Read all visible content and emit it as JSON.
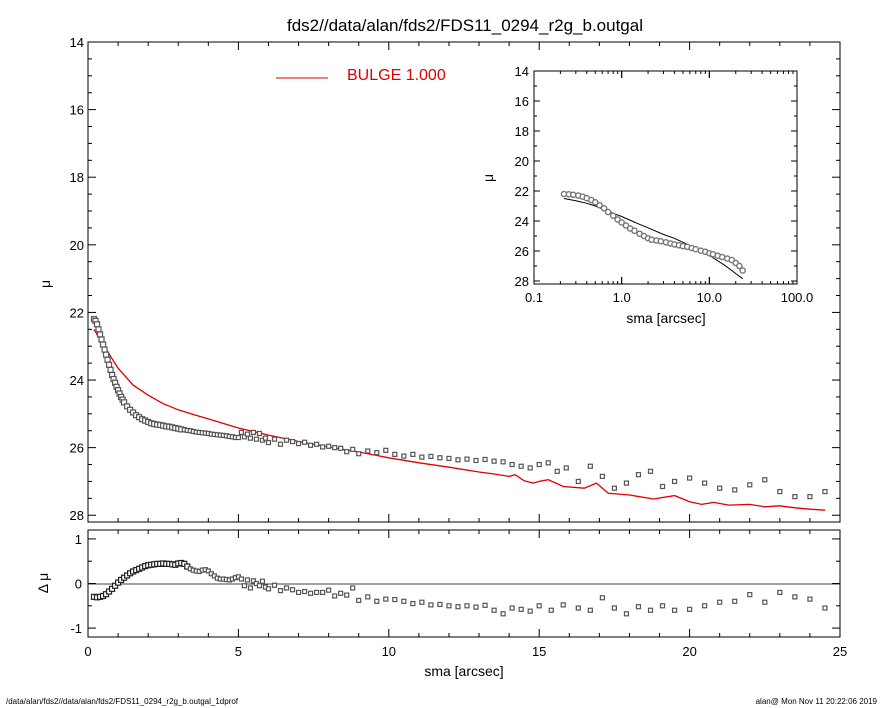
{
  "colors": {
    "model": "#e00000",
    "data": "#555555",
    "axes": "#000000",
    "background": "#ffffff"
  },
  "footer": {
    "left": "/data/alan/fds2//data/alan/fds2/FDS11_0294_r2g_b.outgal_1dprof",
    "right": "alan@  Mon Nov 11 20:22:06 2019"
  },
  "chart_data": [
    {
      "id": "main",
      "type": "scatter",
      "title": "fds2//data/alan/fds2/FDS11_0294_r2g_b.outgal",
      "xlabel": "",
      "ylabel": "μ",
      "xlim": [
        0,
        25
      ],
      "ylim": [
        28.2,
        14
      ],
      "yticks": [
        "14",
        "16",
        "18",
        "20",
        "22",
        "24",
        "26",
        "28"
      ],
      "ytick_values": [
        14,
        16,
        18,
        20,
        22,
        24,
        26,
        28
      ],
      "legend": {
        "label": "BULGE  1.000",
        "position": "top-center"
      },
      "data_points": {
        "x": [
          0.2,
          0.25,
          0.3,
          0.35,
          0.4,
          0.45,
          0.5,
          0.55,
          0.6,
          0.65,
          0.7,
          0.75,
          0.8,
          0.85,
          0.9,
          0.95,
          1.0,
          1.05,
          1.1,
          1.15,
          1.2,
          1.3,
          1.4,
          1.5,
          1.6,
          1.7,
          1.8,
          1.9,
          2.0,
          2.1,
          2.2,
          2.3,
          2.4,
          2.5,
          2.6,
          2.7,
          2.8,
          2.9,
          3.0,
          3.1,
          3.2,
          3.3,
          3.4,
          3.5,
          3.6,
          3.7,
          3.8,
          3.9,
          4.0,
          4.1,
          4.2,
          4.3,
          4.4,
          4.5,
          4.6,
          4.7,
          4.8,
          4.9,
          5.0,
          5.1,
          5.2,
          5.3,
          5.4,
          5.5,
          5.6,
          5.7,
          5.8,
          5.9,
          6.0,
          6.2,
          6.4,
          6.6,
          6.8,
          7.0,
          7.2,
          7.4,
          7.6,
          7.8,
          8.0,
          8.2,
          8.4,
          8.6,
          8.8,
          9.0,
          9.3,
          9.6,
          9.9,
          10.2,
          10.5,
          10.8,
          11.1,
          11.4,
          11.7,
          12.0,
          12.3,
          12.6,
          12.9,
          13.2,
          13.5,
          13.8,
          14.1,
          14.4,
          14.7,
          15.0,
          15.3,
          15.6,
          15.9,
          16.3,
          16.7,
          17.1,
          17.5,
          17.9,
          18.3,
          18.7,
          19.1,
          19.5,
          20.0,
          20.5,
          21.0,
          21.5,
          22.0,
          22.5,
          23.0,
          23.5,
          24.0,
          24.5
        ],
        "y": [
          22.2,
          22.25,
          22.35,
          22.5,
          22.65,
          22.8,
          22.95,
          23.1,
          23.25,
          23.4,
          23.55,
          23.7,
          23.85,
          23.97,
          24.08,
          24.2,
          24.3,
          24.4,
          24.5,
          24.58,
          24.66,
          24.78,
          24.88,
          24.96,
          25.04,
          25.1,
          25.16,
          25.2,
          25.24,
          25.28,
          25.3,
          25.32,
          25.33,
          25.35,
          25.37,
          25.38,
          25.4,
          25.42,
          25.44,
          25.46,
          25.47,
          25.49,
          25.5,
          25.52,
          25.54,
          25.55,
          25.56,
          25.57,
          25.58,
          25.6,
          25.61,
          25.62,
          25.63,
          25.64,
          25.65,
          25.67,
          25.68,
          25.7,
          25.7,
          25.55,
          25.68,
          25.6,
          25.72,
          25.55,
          25.75,
          25.58,
          25.78,
          25.72,
          25.85,
          25.75,
          25.9,
          25.78,
          25.82,
          25.88,
          25.84,
          25.93,
          25.9,
          25.98,
          25.96,
          26.0,
          26.02,
          26.12,
          26.05,
          26.18,
          26.1,
          26.15,
          26.08,
          26.2,
          26.25,
          26.2,
          26.28,
          26.26,
          26.3,
          26.32,
          26.36,
          26.34,
          26.38,
          26.35,
          26.4,
          26.42,
          26.5,
          26.55,
          26.6,
          26.5,
          26.45,
          26.7,
          26.6,
          27.0,
          26.55,
          26.85,
          27.2,
          27.05,
          26.8,
          26.7,
          27.15,
          27.0,
          26.9,
          27.05,
          27.2,
          27.25,
          27.1,
          26.95,
          27.3,
          27.45,
          27.45,
          27.3
        ]
      },
      "model_curve": {
        "name": "BULGE  1.000",
        "x": [
          0.2,
          0.5,
          1.0,
          1.5,
          2.0,
          2.5,
          3.0,
          3.5,
          4.0,
          5.0,
          6.0,
          7.0,
          8.0,
          9.0,
          10.0,
          11.0,
          12.0,
          13.0,
          13.5,
          14.0,
          14.2,
          14.5,
          14.8,
          15.0,
          15.3,
          15.8,
          16.5,
          16.9,
          17.3,
          18.0,
          18.8,
          19.5,
          20.0,
          20.4,
          20.8,
          21.3,
          22.0,
          22.5,
          23.0,
          23.5,
          24.0,
          24.5
        ],
        "y": [
          22.5,
          22.95,
          23.65,
          24.15,
          24.45,
          24.7,
          24.88,
          25.02,
          25.15,
          25.42,
          25.63,
          25.82,
          25.98,
          26.13,
          26.3,
          26.45,
          26.58,
          26.72,
          26.78,
          26.85,
          26.8,
          26.98,
          27.05,
          27.0,
          26.95,
          27.15,
          27.2,
          27.05,
          27.35,
          27.4,
          27.52,
          27.42,
          27.6,
          27.68,
          27.62,
          27.7,
          27.68,
          27.75,
          27.72,
          27.78,
          27.82,
          27.85
        ]
      }
    },
    {
      "id": "residual",
      "type": "scatter",
      "xlabel": "sma [arcsec]",
      "ylabel": "Δ μ",
      "xlim": [
        0,
        25
      ],
      "ylim": [
        -1.2,
        1.2
      ],
      "xticks": [
        "0",
        "5",
        "10",
        "15",
        "20",
        "25"
      ],
      "xtick_values": [
        0,
        5,
        10,
        15,
        20,
        25
      ],
      "yticks": [
        "1",
        "0",
        "-1"
      ],
      "ytick_values": [
        1,
        0,
        -1
      ],
      "reference_line": 0,
      "data_points": {
        "x": [
          0.2,
          0.3,
          0.4,
          0.5,
          0.6,
          0.7,
          0.8,
          0.9,
          1.0,
          1.1,
          1.2,
          1.3,
          1.4,
          1.5,
          1.6,
          1.7,
          1.8,
          1.9,
          2.0,
          2.1,
          2.2,
          2.3,
          2.4,
          2.5,
          2.6,
          2.7,
          2.8,
          2.9,
          3.0,
          3.1,
          3.2,
          3.3,
          3.4,
          3.5,
          3.6,
          3.7,
          3.8,
          3.9,
          4.0,
          4.1,
          4.2,
          4.3,
          4.4,
          4.5,
          4.6,
          4.7,
          4.8,
          4.9,
          5.0,
          5.1,
          5.2,
          5.3,
          5.4,
          5.5,
          5.6,
          5.7,
          5.8,
          5.9,
          6.0,
          6.2,
          6.4,
          6.6,
          6.8,
          7.0,
          7.2,
          7.4,
          7.6,
          7.8,
          8.0,
          8.2,
          8.4,
          8.6,
          8.8,
          9.0,
          9.3,
          9.6,
          9.9,
          10.2,
          10.5,
          10.8,
          11.1,
          11.4,
          11.7,
          12.0,
          12.3,
          12.6,
          12.9,
          13.2,
          13.5,
          13.8,
          14.1,
          14.4,
          14.7,
          15.0,
          15.4,
          15.8,
          16.3,
          16.7,
          17.1,
          17.5,
          17.9,
          18.3,
          18.7,
          19.1,
          19.5,
          20.0,
          20.5,
          21.0,
          21.5,
          22.0,
          22.5,
          23.0,
          23.5,
          24.0,
          24.5
        ],
        "y": [
          -0.3,
          -0.31,
          -0.3,
          -0.28,
          -0.24,
          -0.18,
          -0.12,
          -0.05,
          0.02,
          0.08,
          0.13,
          0.18,
          0.23,
          0.27,
          0.3,
          0.33,
          0.36,
          0.39,
          0.41,
          0.42,
          0.43,
          0.44,
          0.44,
          0.45,
          0.44,
          0.44,
          0.43,
          0.42,
          0.45,
          0.46,
          0.44,
          0.38,
          0.33,
          0.3,
          0.28,
          0.27,
          0.3,
          0.31,
          0.28,
          0.22,
          0.17,
          0.12,
          0.1,
          0.1,
          0.09,
          0.08,
          0.1,
          0.13,
          0.15,
          0.1,
          -0.05,
          0.08,
          -0.1,
          0.06,
          0.0,
          -0.05,
          0.05,
          -0.08,
          -0.12,
          -0.04,
          -0.16,
          -0.1,
          -0.14,
          -0.2,
          -0.18,
          -0.22,
          -0.2,
          -0.2,
          -0.15,
          -0.28,
          -0.22,
          -0.26,
          -0.1,
          -0.38,
          -0.3,
          -0.4,
          -0.35,
          -0.36,
          -0.4,
          -0.45,
          -0.42,
          -0.48,
          -0.47,
          -0.5,
          -0.52,
          -0.5,
          -0.53,
          -0.49,
          -0.6,
          -0.68,
          -0.55,
          -0.58,
          -0.62,
          -0.5,
          -0.6,
          -0.48,
          -0.55,
          -0.6,
          -0.32,
          -0.55,
          -0.68,
          -0.52,
          -0.6,
          -0.5,
          -0.6,
          -0.58,
          -0.5,
          -0.42,
          -0.4,
          -0.25,
          -0.42,
          -0.2,
          -0.3,
          -0.35,
          -0.55
        ]
      }
    },
    {
      "id": "inset",
      "type": "scatter",
      "xlabel": "sma [arcsec]",
      "ylabel": "μ",
      "xscale": "log",
      "xlim": [
        0.1,
        100
      ],
      "ylim": [
        28.2,
        14
      ],
      "xticks": [
        "0.1",
        "1.0",
        "10.0",
        "100.0"
      ],
      "xtick_values": [
        0.1,
        1,
        10,
        100
      ],
      "yticks": [
        "14",
        "16",
        "18",
        "20",
        "22",
        "24",
        "26",
        "28"
      ],
      "ytick_values": [
        14,
        16,
        18,
        20,
        22,
        24,
        26,
        28
      ],
      "data_points": {
        "x": [
          0.22,
          0.25,
          0.28,
          0.32,
          0.36,
          0.4,
          0.45,
          0.5,
          0.56,
          0.63,
          0.7,
          0.8,
          0.9,
          1.0,
          1.12,
          1.25,
          1.4,
          1.6,
          1.8,
          2.0,
          2.2,
          2.5,
          2.8,
          3.2,
          3.6,
          4.0,
          4.5,
          5.0,
          5.6,
          6.3,
          7.0,
          8.0,
          9.0,
          10.0,
          11.0,
          12.5,
          14.0,
          16.0,
          18.0,
          20.0,
          22.0,
          24.0
        ],
        "y": [
          22.2,
          22.22,
          22.25,
          22.3,
          22.38,
          22.48,
          22.6,
          22.75,
          22.95,
          23.15,
          23.4,
          23.65,
          23.9,
          24.1,
          24.3,
          24.5,
          24.65,
          24.85,
          25.0,
          25.15,
          25.25,
          25.3,
          25.35,
          25.42,
          25.5,
          25.56,
          25.62,
          25.68,
          25.72,
          25.8,
          25.88,
          25.98,
          26.05,
          26.15,
          26.22,
          26.32,
          26.4,
          26.5,
          26.6,
          26.8,
          27.0,
          27.3
        ]
      },
      "model_curve": {
        "x": [
          0.22,
          0.3,
          0.4,
          0.5,
          0.7,
          1.0,
          1.5,
          2.0,
          3.0,
          4.0,
          5.0,
          7.0,
          10.0,
          15.0,
          20.0,
          24.0
        ],
        "y": [
          22.5,
          22.65,
          22.82,
          23.0,
          23.35,
          23.7,
          24.15,
          24.45,
          24.9,
          25.15,
          25.42,
          25.82,
          26.3,
          26.95,
          27.5,
          27.85
        ]
      }
    }
  ]
}
